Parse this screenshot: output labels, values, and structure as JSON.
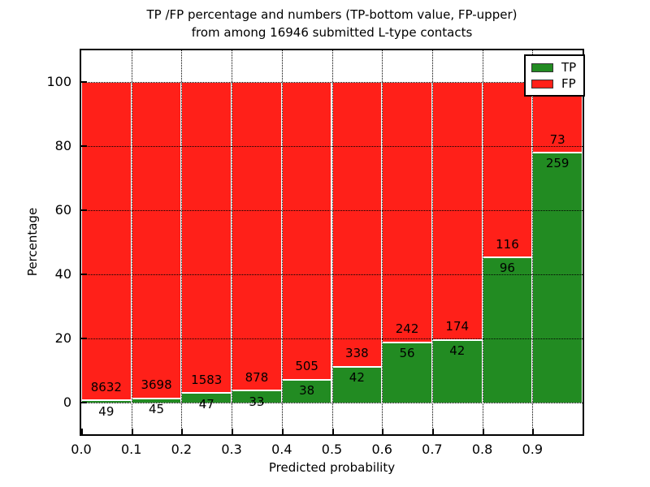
{
  "title": {
    "line1": "TP /FP percentage and numbers (TP-bottom value, FP-upper)",
    "line2": "from among 16946 submitted L-type contacts"
  },
  "chart_data": {
    "type": "bar",
    "stacked": true,
    "normalized_to_percent": true,
    "title": "TP /FP percentage and numbers (TP-bottom value, FP-upper)\nfrom among 16946 submitted L-type contacts",
    "xlabel": "Predicted probability",
    "ylabel": "Percentage",
    "total_contacts": 16946,
    "bin_width": 0.1,
    "categories": [
      "0.0",
      "0.1",
      "0.2",
      "0.3",
      "0.4",
      "0.5",
      "0.6",
      "0.7",
      "0.8",
      "0.9"
    ],
    "series": [
      {
        "name": "TP",
        "color": "#228b22",
        "counts": [
          49,
          45,
          47,
          33,
          38,
          42,
          56,
          42,
          96,
          259
        ]
      },
      {
        "name": "FP",
        "color": "#ff2019",
        "counts": [
          8632,
          3698,
          1583,
          878,
          505,
          338,
          242,
          174,
          116,
          73
        ]
      }
    ],
    "tp_percent": [
      0.56,
      1.2,
      2.88,
      3.62,
      7.0,
      11.05,
      18.79,
      19.44,
      45.28,
      78.01
    ],
    "fp_percent": [
      99.44,
      98.8,
      97.12,
      96.38,
      93.0,
      88.95,
      81.21,
      80.56,
      54.72,
      21.99
    ],
    "ylim": [
      -10,
      110
    ],
    "yticks": [
      0,
      20,
      40,
      60,
      80,
      100
    ],
    "xticks": [
      "0.0",
      "0.1",
      "0.2",
      "0.3",
      "0.4",
      "0.5",
      "0.6",
      "0.7",
      "0.8",
      "0.9"
    ],
    "grid": "dotted",
    "legend": {
      "position": "upper right",
      "entries": [
        {
          "label": "TP",
          "color": "#228b22"
        },
        {
          "label": "FP",
          "color": "#ff2019"
        }
      ]
    }
  }
}
